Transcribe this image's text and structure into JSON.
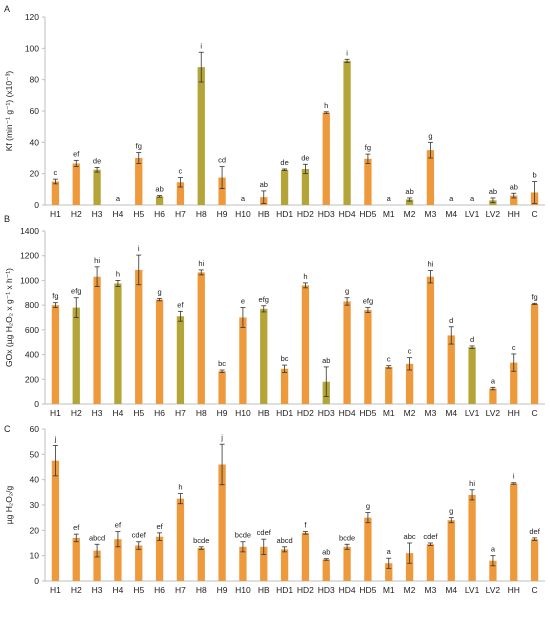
{
  "colors": {
    "orange": "#EE9A3C",
    "green": "#B5A438",
    "axis": "#BFBFBF",
    "error": "#333333"
  },
  "chart_data": [
    {
      "panel": "A",
      "type": "bar",
      "ylabel": "Kf (min⁻¹ g⁻¹) (x10⁻³)",
      "ylim": [
        0,
        120
      ],
      "yticks": [
        0,
        20,
        40,
        60,
        80,
        100,
        120
      ],
      "grid": false,
      "categories": [
        "H1",
        "H2",
        "H3",
        "H4",
        "H5",
        "H6",
        "H7",
        "H8",
        "H9",
        "H10",
        "HB",
        "HD1",
        "HD2",
        "HD3",
        "HD4",
        "HD5",
        "M1",
        "M2",
        "M3",
        "M4",
        "LV1",
        "LV2",
        "HH",
        "C"
      ],
      "values": [
        15,
        26.5,
        22.5,
        0,
        30,
        5.5,
        14.5,
        88,
        17.5,
        0,
        5,
        22.5,
        23,
        59,
        92,
        29.5,
        0,
        3.5,
        35,
        0,
        0,
        3,
        6,
        8
      ],
      "errors": [
        1.5,
        2,
        1.5,
        0,
        3.5,
        0.5,
        3,
        9.5,
        7,
        0,
        4,
        0.5,
        3,
        0.5,
        1,
        3,
        0,
        1,
        5,
        0,
        0,
        1.5,
        1.5,
        7
      ],
      "letters": [
        "c",
        "ef",
        "de",
        "a",
        "fg",
        "ab",
        "c",
        "i",
        "cd",
        "a",
        "ab",
        "de",
        "de",
        "h",
        "i",
        "fg",
        "a",
        "ab",
        "g",
        "a",
        "a",
        "ab",
        "ab",
        "b"
      ],
      "bar_colors": [
        "orange",
        "orange",
        "green",
        "orange",
        "orange",
        "green",
        "orange",
        "green",
        "orange",
        "orange",
        "orange",
        "green",
        "green",
        "orange",
        "green",
        "orange",
        "orange",
        "green",
        "orange",
        "orange",
        "orange",
        "green",
        "orange",
        "orange"
      ]
    },
    {
      "panel": "B",
      "type": "bar",
      "ylabel": "GOx (µg H₂O₂ x g⁻¹ x h⁻¹)",
      "ylim": [
        0,
        1400
      ],
      "yticks": [
        0,
        200,
        400,
        600,
        800,
        1000,
        1200,
        1400
      ],
      "grid": false,
      "categories": [
        "H1",
        "H2",
        "H3",
        "H4",
        "H5",
        "H6",
        "H7",
        "H8",
        "H9",
        "H10",
        "HB",
        "HD1",
        "HD2",
        "HD3",
        "HD4",
        "HD5",
        "M1",
        "M2",
        "M3",
        "M4",
        "LV1",
        "LV2",
        "HH",
        "C"
      ],
      "values": [
        800,
        780,
        1030,
        975,
        1085,
        845,
        710,
        1065,
        265,
        700,
        770,
        285,
        960,
        180,
        830,
        760,
        300,
        325,
        1030,
        555,
        460,
        125,
        335,
        810
      ],
      "errors": [
        20,
        80,
        80,
        25,
        120,
        10,
        40,
        20,
        10,
        80,
        25,
        30,
        20,
        120,
        30,
        20,
        10,
        50,
        50,
        70,
        10,
        10,
        70,
        5
      ],
      "letters": [
        "fg",
        "efg",
        "hi",
        "h",
        "i",
        "g",
        "ef",
        "hi",
        "bc",
        "e",
        "efg",
        "bc",
        "h",
        "ab",
        "g",
        "efg",
        "c",
        "c",
        "hi",
        "d",
        "d",
        "a",
        "c",
        "fg"
      ],
      "bar_colors": [
        "orange",
        "green",
        "orange",
        "green",
        "orange",
        "orange",
        "green",
        "orange",
        "orange",
        "orange",
        "green",
        "orange",
        "orange",
        "green",
        "orange",
        "orange",
        "orange",
        "orange",
        "orange",
        "orange",
        "green",
        "orange",
        "orange",
        "orange"
      ]
    },
    {
      "panel": "C",
      "type": "bar",
      "ylabel": "µg H₂O₂/g",
      "ylim": [
        0,
        60
      ],
      "yticks": [
        0,
        10,
        20,
        30,
        40,
        50,
        60
      ],
      "grid": false,
      "categories": [
        "H1",
        "H2",
        "H3",
        "H4",
        "H5",
        "H6",
        "H7",
        "H8",
        "H9",
        "H10",
        "HB",
        "HD1",
        "HD2",
        "HD3",
        "HD4",
        "HD5",
        "M1",
        "M2",
        "M3",
        "M4",
        "LV1",
        "LV2",
        "HH",
        "C"
      ],
      "values": [
        47.5,
        17,
        12,
        16.5,
        14,
        17.5,
        32.5,
        13,
        46,
        13.5,
        13.5,
        12.5,
        19,
        8.5,
        13.5,
        25,
        7,
        11,
        14.5,
        24,
        34,
        8,
        38.5,
        16.5
      ],
      "errors": [
        6,
        1.5,
        2.5,
        3,
        1.5,
        1.5,
        2,
        0.5,
        8,
        2,
        3,
        1,
        0.5,
        0.3,
        1,
        2,
        2,
        4,
        0.5,
        1,
        2,
        2,
        0.3,
        0.5
      ],
      "letters": [
        "j",
        "ef",
        "abcd",
        "ef",
        "cdef",
        "ef",
        "h",
        "bcde",
        "j",
        "bcde",
        "cdef",
        "abcd",
        "f",
        "ab",
        "bcde",
        "g",
        "a",
        "abc",
        "cdef",
        "g",
        "hi",
        "a",
        "i",
        "def"
      ],
      "bar_colors": [
        "orange",
        "orange",
        "orange",
        "orange",
        "orange",
        "orange",
        "orange",
        "orange",
        "orange",
        "orange",
        "orange",
        "orange",
        "orange",
        "orange",
        "orange",
        "orange",
        "orange",
        "orange",
        "orange",
        "orange",
        "orange",
        "orange",
        "orange",
        "orange"
      ]
    }
  ]
}
